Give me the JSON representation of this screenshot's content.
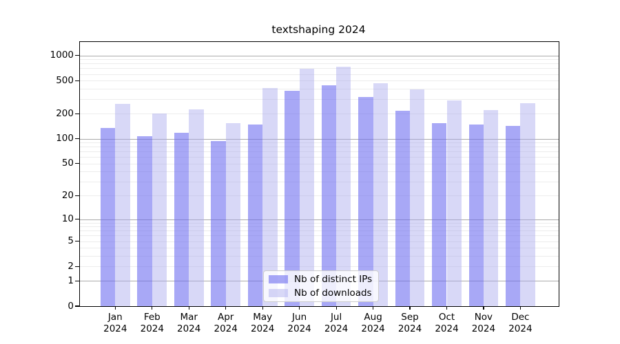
{
  "title": "textshaping 2024",
  "chart_data": {
    "type": "bar",
    "title": "textshaping 2024",
    "categories": [
      "Jan",
      "Feb",
      "Mar",
      "Apr",
      "May",
      "Jun",
      "Jul",
      "Aug",
      "Sep",
      "Oct",
      "Nov",
      "Dec"
    ],
    "x_year": "2024",
    "series": [
      {
        "name": "Nb of distinct IPs",
        "color": "rgba(105,105,240,0.58)",
        "values": [
          136,
          107,
          117,
          93,
          147,
          376,
          438,
          317,
          216,
          155,
          147,
          143
        ]
      },
      {
        "name": "Nb of downloads",
        "color": "rgba(168,168,237,0.45)",
        "values": [
          264,
          203,
          224,
          153,
          404,
          698,
          734,
          461,
          389,
          287,
          220,
          269
        ]
      }
    ],
    "y_scale": "log1p",
    "y_ticks": [
      0,
      1,
      2,
      5,
      10,
      20,
      50,
      100,
      200,
      500,
      1000
    ],
    "ylim": [
      0,
      1450
    ],
    "xlabel": "",
    "ylabel": "",
    "grid": true,
    "grid_major_color": "#a9a9a9",
    "grid_minor_color": "#ececec",
    "legend_position": "lower center"
  }
}
